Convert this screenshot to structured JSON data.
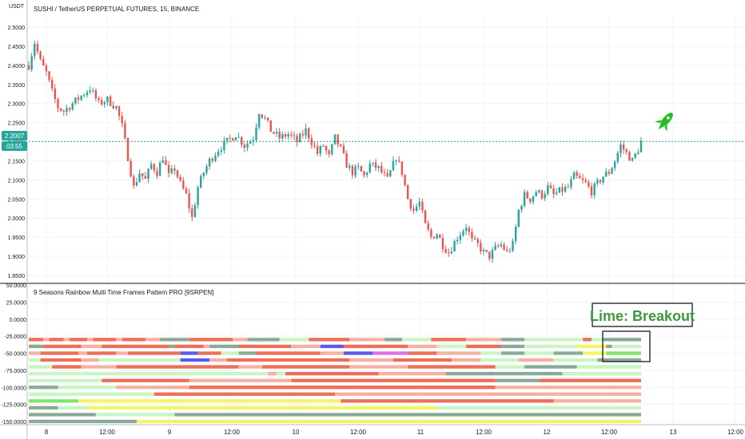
{
  "header": {
    "title": "SUSHI / TetherUS PERPETUAL FUTURES, 15, BINANCE",
    "currency": "USDT"
  },
  "price_tag": {
    "price": "2.2007",
    "countdown": "03:55"
  },
  "indicator": {
    "title": "9 Seasons Rainbow Multi Time Frames Pattern PRO [9SRPEN]",
    "annotation": "Lime: Breakout"
  },
  "colors": {
    "up_candle": "#26a69a",
    "down_candle": "#ef5350",
    "price_line": "#26a69a",
    "rocket": "#22c022",
    "annotation_text": "#3a9a3a"
  },
  "chart_data": [
    {
      "type": "candlestick",
      "title": "SUSHI / TetherUS PERPETUAL FUTURES, 15, BINANCE",
      "ylabel": "USDT",
      "ylim": [
        1.83,
        2.52
      ],
      "yticks": [
        "2.5000",
        "2.4500",
        "2.4000",
        "2.3500",
        "2.3000",
        "2.2500",
        "2.2000",
        "2.1500",
        "2.1000",
        "2.0500",
        "2.0000",
        "1.9500",
        "1.9000",
        "1.8500"
      ],
      "last_price": 2.2007,
      "xticks": [
        "8",
        "12:00",
        "9",
        "12:00",
        "10",
        "12:00",
        "11",
        "12:00",
        "12",
        "12:00",
        "13",
        "12:00"
      ],
      "close_path": [
        [
          0,
          2.4
        ],
        [
          2,
          2.46
        ],
        [
          4,
          2.41
        ],
        [
          6,
          2.38
        ],
        [
          8,
          2.33
        ],
        [
          10,
          2.29
        ],
        [
          12,
          2.28
        ],
        [
          15,
          2.3
        ],
        [
          18,
          2.32
        ],
        [
          21,
          2.34
        ],
        [
          24,
          2.3
        ],
        [
          27,
          2.31
        ],
        [
          30,
          2.29
        ],
        [
          32,
          2.24
        ],
        [
          34,
          2.16
        ],
        [
          36,
          2.08
        ],
        [
          38,
          2.12
        ],
        [
          40,
          2.1
        ],
        [
          42,
          2.14
        ],
        [
          44,
          2.12
        ],
        [
          46,
          2.16
        ],
        [
          48,
          2.11
        ],
        [
          50,
          2.13
        ],
        [
          52,
          2.09
        ],
        [
          54,
          2.06
        ],
        [
          56,
          2.0
        ],
        [
          58,
          2.08
        ],
        [
          60,
          2.12
        ],
        [
          62,
          2.15
        ],
        [
          65,
          2.18
        ],
        [
          68,
          2.2
        ],
        [
          71,
          2.22
        ],
        [
          74,
          2.19
        ],
        [
          77,
          2.21
        ],
        [
          79,
          2.28
        ],
        [
          81,
          2.26
        ],
        [
          83,
          2.23
        ],
        [
          86,
          2.21
        ],
        [
          89,
          2.22
        ],
        [
          92,
          2.2
        ],
        [
          95,
          2.23
        ],
        [
          97,
          2.2
        ],
        [
          99,
          2.17
        ],
        [
          101,
          2.19
        ],
        [
          103,
          2.16
        ],
        [
          105,
          2.21
        ],
        [
          107,
          2.18
        ],
        [
          109,
          2.14
        ],
        [
          111,
          2.12
        ],
        [
          113,
          2.13
        ],
        [
          115,
          2.11
        ],
        [
          117,
          2.14
        ],
        [
          120,
          2.13
        ],
        [
          123,
          2.1
        ],
        [
          126,
          2.16
        ],
        [
          128,
          2.12
        ],
        [
          130,
          2.05
        ],
        [
          132,
          2.02
        ],
        [
          134,
          2.04
        ],
        [
          136,
          1.98
        ],
        [
          138,
          1.95
        ],
        [
          140,
          1.96
        ],
        [
          142,
          1.93
        ],
        [
          144,
          1.91
        ],
        [
          147,
          1.95
        ],
        [
          150,
          1.98
        ],
        [
          152,
          1.94
        ],
        [
          154,
          1.93
        ],
        [
          156,
          1.91
        ],
        [
          158,
          1.9
        ],
        [
          160,
          1.92
        ],
        [
          162,
          1.93
        ],
        [
          164,
          1.91
        ],
        [
          166,
          1.93
        ],
        [
          168,
          2.02
        ],
        [
          170,
          2.06
        ],
        [
          172,
          2.05
        ],
        [
          174,
          2.07
        ],
        [
          176,
          2.06
        ],
        [
          178,
          2.08
        ],
        [
          180,
          2.06
        ],
        [
          182,
          2.07
        ],
        [
          185,
          2.08
        ],
        [
          187,
          2.11
        ],
        [
          189,
          2.1
        ],
        [
          191,
          2.09
        ],
        [
          193,
          2.07
        ],
        [
          195,
          2.09
        ],
        [
          197,
          2.11
        ],
        [
          199,
          2.12
        ],
        [
          201,
          2.15
        ],
        [
          203,
          2.19
        ],
        [
          205,
          2.17
        ],
        [
          207,
          2.15
        ],
        [
          209,
          2.18
        ],
        [
          210,
          2.2
        ]
      ]
    },
    {
      "type": "heatmap",
      "title": "9 Seasons Rainbow Multi Time Frames Pattern PRO [9SRPEN]",
      "ylim": [
        -153,
        52
      ],
      "yticks": [
        "50.0000",
        "25.0000",
        "0.0000",
        "-25.0000",
        "-50.0000",
        "-75.0000",
        "-100.0000",
        "-125.0000",
        "-150.0000"
      ],
      "row_values": [
        -30,
        -40,
        -50,
        -60,
        -70,
        -80,
        -90,
        -100,
        -110,
        -120,
        -130,
        -140,
        -150
      ],
      "legend_codes": {
        "r": "#ec6f58",
        "p": "#f7b0a4",
        "l": "#c8f5c2",
        "g": "#8aaa98",
        "y": "#f4f466",
        "b": "#5c5ce8",
        "m": "#e070e8",
        "k": "#7be86a"
      },
      "rows": [
        [
          [
            0,
            "r"
          ],
          [
            5,
            "p"
          ],
          [
            7,
            "r"
          ],
          [
            12,
            "p"
          ],
          [
            14,
            "r"
          ],
          [
            20,
            "p"
          ],
          [
            22,
            "r"
          ],
          [
            30,
            "p"
          ],
          [
            32,
            "r"
          ],
          [
            40,
            "p"
          ],
          [
            45,
            "g"
          ],
          [
            55,
            "r"
          ],
          [
            70,
            "p"
          ],
          [
            75,
            "g"
          ],
          [
            86,
            "l"
          ],
          [
            96,
            "r"
          ],
          [
            110,
            "p"
          ],
          [
            122,
            "g"
          ],
          [
            128,
            "l"
          ],
          [
            138,
            "r"
          ],
          [
            150,
            "p"
          ],
          [
            162,
            "g"
          ],
          [
            170,
            "l"
          ],
          [
            190,
            "r"
          ],
          [
            193,
            "l"
          ],
          [
            197,
            "g"
          ],
          [
            210,
            "g"
          ]
        ],
        [
          [
            0,
            "g"
          ],
          [
            5,
            "r"
          ],
          [
            18,
            "p"
          ],
          [
            25,
            "r"
          ],
          [
            48,
            "g"
          ],
          [
            50,
            "r"
          ],
          [
            60,
            "p"
          ],
          [
            62,
            "g"
          ],
          [
            72,
            "r"
          ],
          [
            90,
            "p"
          ],
          [
            100,
            "b"
          ],
          [
            108,
            "r"
          ],
          [
            130,
            "p"
          ],
          [
            140,
            "l"
          ],
          [
            150,
            "r"
          ],
          [
            162,
            "g"
          ],
          [
            170,
            "l"
          ],
          [
            188,
            "y"
          ],
          [
            198,
            "g"
          ],
          [
            200,
            "l"
          ],
          [
            210,
            "l"
          ]
        ],
        [
          [
            0,
            "p"
          ],
          [
            4,
            "r"
          ],
          [
            17,
            "p"
          ],
          [
            20,
            "r"
          ],
          [
            30,
            "p"
          ],
          [
            34,
            "r"
          ],
          [
            52,
            "b"
          ],
          [
            58,
            "r"
          ],
          [
            66,
            "l"
          ],
          [
            72,
            "g"
          ],
          [
            78,
            "r"
          ],
          [
            100,
            "p"
          ],
          [
            108,
            "b"
          ],
          [
            118,
            "m"
          ],
          [
            130,
            "r"
          ],
          [
            140,
            "p"
          ],
          [
            155,
            "l"
          ],
          [
            162,
            "g"
          ],
          [
            170,
            "l"
          ],
          [
            180,
            "g"
          ],
          [
            190,
            "y"
          ],
          [
            198,
            "k"
          ],
          [
            210,
            "k"
          ]
        ],
        [
          [
            0,
            "l"
          ],
          [
            4,
            "r"
          ],
          [
            18,
            "p"
          ],
          [
            24,
            "l"
          ],
          [
            52,
            "b"
          ],
          [
            62,
            "p"
          ],
          [
            68,
            "r"
          ],
          [
            110,
            "p"
          ],
          [
            125,
            "r"
          ],
          [
            145,
            "p"
          ],
          [
            155,
            "l"
          ],
          [
            168,
            "p"
          ],
          [
            180,
            "l"
          ],
          [
            195,
            "g"
          ],
          [
            210,
            "g"
          ]
        ],
        [
          [
            0,
            "l"
          ],
          [
            8,
            "r"
          ],
          [
            18,
            "p"
          ],
          [
            30,
            "r"
          ],
          [
            72,
            "p"
          ],
          [
            80,
            "r"
          ],
          [
            110,
            "p"
          ],
          [
            130,
            "r"
          ],
          [
            160,
            "l"
          ],
          [
            170,
            "g"
          ],
          [
            188,
            "l"
          ],
          [
            210,
            "l"
          ]
        ],
        [
          [
            0,
            "l"
          ],
          [
            60,
            "l"
          ],
          [
            82,
            "p"
          ],
          [
            85,
            "l"
          ],
          [
            88,
            "r"
          ],
          [
            120,
            "p"
          ],
          [
            143,
            "g"
          ],
          [
            160,
            "g"
          ],
          [
            183,
            "l"
          ],
          [
            210,
            "l"
          ]
        ],
        [
          [
            0,
            "l"
          ],
          [
            25,
            "r"
          ],
          [
            55,
            "p"
          ],
          [
            90,
            "r"
          ],
          [
            160,
            "g"
          ],
          [
            175,
            "r"
          ],
          [
            210,
            "r"
          ]
        ],
        [
          [
            0,
            "g"
          ],
          [
            10,
            "l"
          ],
          [
            30,
            "p"
          ],
          [
            55,
            "r"
          ],
          [
            160,
            "p"
          ],
          [
            210,
            "p"
          ]
        ],
        [
          [
            0,
            "l"
          ],
          [
            43,
            "r"
          ],
          [
            105,
            "p"
          ],
          [
            210,
            "p"
          ]
        ],
        [
          [
            0,
            "k"
          ],
          [
            17,
            "y"
          ],
          [
            107,
            "r"
          ],
          [
            180,
            "p"
          ],
          [
            210,
            "p"
          ]
        ],
        [
          [
            0,
            "g"
          ],
          [
            10,
            "l"
          ],
          [
            20,
            "y"
          ],
          [
            140,
            "l"
          ],
          [
            210,
            "l"
          ]
        ],
        [
          [
            0,
            "g"
          ],
          [
            23,
            "l"
          ],
          [
            50,
            "g"
          ],
          [
            210,
            "g"
          ]
        ],
        [
          [
            0,
            "g"
          ],
          [
            37,
            "y"
          ],
          [
            210,
            "y"
          ]
        ]
      ]
    }
  ]
}
